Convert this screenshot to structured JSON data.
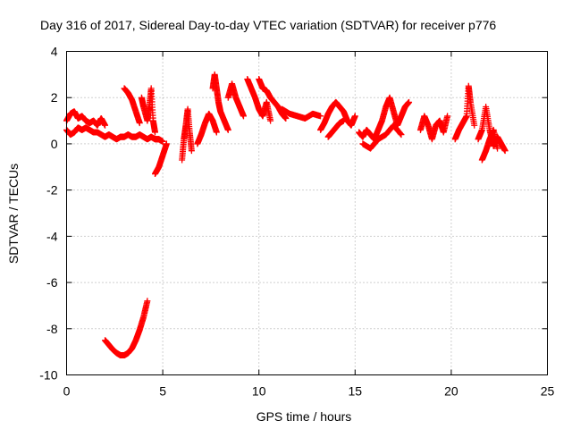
{
  "chart_data": {
    "type": "scatter",
    "title": "Day 316 of 2017, Sidereal Day-to-day VTEC variation (SDTVAR) for receiver p776",
    "xlabel": "GPS time / hours",
    "ylabel": "SDTVAR / TECUs",
    "xlim": [
      0,
      25
    ],
    "ylim": [
      -10,
      4
    ],
    "xticks": [
      "0",
      "5",
      "10",
      "15",
      "20",
      "25"
    ],
    "yticks": [
      "-10",
      "-8",
      "-6",
      "-4",
      "-2",
      "0",
      "2",
      "4"
    ],
    "grid": true,
    "marker": "plus",
    "color": "#ff0000",
    "series": [
      {
        "name": "SDTVAR",
        "segments": [
          [
            [
              0.0,
              1.0
            ],
            [
              0.2,
              1.3
            ],
            [
              0.4,
              1.4
            ],
            [
              0.6,
              1.1
            ],
            [
              0.8,
              1.2
            ],
            [
              1.0,
              1.0
            ],
            [
              1.2,
              0.9
            ],
            [
              1.4,
              1.0
            ],
            [
              1.6,
              0.8
            ],
            [
              1.8,
              1.1
            ],
            [
              2.0,
              0.8
            ]
          ],
          [
            [
              0.0,
              0.6
            ],
            [
              0.2,
              0.4
            ],
            [
              0.4,
              0.5
            ],
            [
              0.6,
              0.7
            ],
            [
              0.8,
              0.6
            ],
            [
              1.0,
              0.7
            ],
            [
              1.2,
              0.6
            ],
            [
              1.4,
              0.5
            ],
            [
              1.6,
              0.5
            ],
            [
              1.8,
              0.4
            ],
            [
              2.0,
              0.3
            ],
            [
              2.2,
              0.4
            ],
            [
              2.4,
              0.3
            ],
            [
              2.6,
              0.2
            ],
            [
              2.8,
              0.3
            ],
            [
              3.0,
              0.3
            ],
            [
              3.2,
              0.4
            ],
            [
              3.4,
              0.3
            ],
            [
              3.6,
              0.3
            ],
            [
              3.8,
              0.4
            ],
            [
              4.0,
              0.3
            ],
            [
              4.2,
              0.2
            ],
            [
              4.4,
              0.3
            ],
            [
              4.6,
              0.2
            ],
            [
              4.8,
              0.2
            ],
            [
              5.0,
              0.1
            ]
          ],
          [
            [
              2.0,
              -8.5
            ],
            [
              2.2,
              -8.7
            ],
            [
              2.4,
              -8.9
            ],
            [
              2.6,
              -9.05
            ],
            [
              2.8,
              -9.15
            ],
            [
              3.0,
              -9.15
            ],
            [
              3.2,
              -9.05
            ],
            [
              3.4,
              -8.85
            ],
            [
              3.6,
              -8.5
            ],
            [
              3.8,
              -8.05
            ],
            [
              4.0,
              -7.5
            ],
            [
              4.2,
              -6.8
            ]
          ],
          [
            [
              3.0,
              2.4
            ],
            [
              3.2,
              2.2
            ],
            [
              3.4,
              1.9
            ],
            [
              3.6,
              1.4
            ],
            [
              3.8,
              0.9
            ]
          ],
          [
            [
              3.9,
              2.0
            ],
            [
              4.0,
              1.6
            ],
            [
              4.2,
              1.0
            ],
            [
              4.3,
              1.6
            ],
            [
              4.4,
              2.4
            ],
            [
              4.5,
              1.0
            ],
            [
              4.6,
              0.5
            ]
          ],
          [
            [
              4.6,
              -1.3
            ],
            [
              4.8,
              -1.0
            ],
            [
              5.0,
              -0.5
            ],
            [
              5.2,
              0.0
            ]
          ],
          [
            [
              6.0,
              -0.7
            ],
            [
              6.1,
              0.2
            ],
            [
              6.2,
              0.8
            ],
            [
              6.3,
              1.5
            ],
            [
              6.4,
              0.5
            ],
            [
              6.5,
              -0.3
            ]
          ],
          [
            [
              6.8,
              0.0
            ],
            [
              7.0,
              0.4
            ],
            [
              7.2,
              0.9
            ],
            [
              7.4,
              1.3
            ],
            [
              7.6,
              1.0
            ],
            [
              7.8,
              0.5
            ]
          ],
          [
            [
              7.6,
              2.4
            ],
            [
              7.7,
              3.0
            ],
            [
              7.8,
              2.4
            ],
            [
              7.9,
              1.8
            ],
            [
              8.0,
              1.4
            ],
            [
              8.2,
              1.0
            ],
            [
              8.4,
              0.6
            ]
          ],
          [
            [
              8.4,
              2.0
            ],
            [
              8.6,
              2.6
            ],
            [
              8.8,
              2.0
            ],
            [
              9.0,
              1.6
            ],
            [
              9.2,
              1.2
            ]
          ],
          [
            [
              9.4,
              2.8
            ],
            [
              9.6,
              2.4
            ],
            [
              9.8,
              2.0
            ],
            [
              10.0,
              1.5
            ],
            [
              10.2,
              1.2
            ],
            [
              10.4,
              1.8
            ],
            [
              10.6,
              1.0
            ]
          ],
          [
            [
              10.0,
              2.8
            ],
            [
              10.2,
              2.4
            ],
            [
              10.4,
              2.3
            ],
            [
              10.6,
              2.0
            ],
            [
              10.8,
              1.8
            ],
            [
              11.0,
              1.6
            ],
            [
              11.2,
              1.3
            ],
            [
              11.4,
              1.1
            ]
          ],
          [
            [
              11.2,
              1.5
            ],
            [
              11.6,
              1.3
            ],
            [
              12.0,
              1.2
            ],
            [
              12.4,
              1.1
            ],
            [
              12.8,
              1.3
            ],
            [
              13.2,
              1.2
            ]
          ],
          [
            [
              13.2,
              0.6
            ],
            [
              13.4,
              0.9
            ],
            [
              13.6,
              1.3
            ],
            [
              13.8,
              1.6
            ],
            [
              14.0,
              1.8
            ],
            [
              14.2,
              1.6
            ],
            [
              14.4,
              1.4
            ],
            [
              14.6,
              1.0
            ],
            [
              14.8,
              0.8
            ],
            [
              15.0,
              1.2
            ]
          ],
          [
            [
              13.6,
              0.3
            ],
            [
              13.8,
              0.5
            ],
            [
              14.0,
              0.7
            ],
            [
              14.2,
              0.9
            ],
            [
              14.4,
              1.0
            ]
          ],
          [
            [
              15.2,
              0.5
            ],
            [
              15.4,
              0.3
            ],
            [
              15.6,
              0.6
            ],
            [
              15.8,
              0.4
            ],
            [
              16.0,
              0.2
            ],
            [
              16.2,
              0.6
            ],
            [
              16.4,
              1.0
            ],
            [
              16.6,
              1.6
            ],
            [
              16.8,
              2.0
            ],
            [
              17.0,
              1.4
            ],
            [
              17.2,
              0.8
            ],
            [
              17.4,
              1.2
            ],
            [
              17.6,
              1.6
            ],
            [
              17.8,
              1.8
            ]
          ],
          [
            [
              15.4,
              0.0
            ],
            [
              15.8,
              -0.2
            ],
            [
              16.2,
              0.2
            ],
            [
              16.6,
              0.4
            ],
            [
              17.0,
              0.8
            ],
            [
              17.4,
              0.4
            ]
          ],
          [
            [
              18.4,
              0.6
            ],
            [
              18.6,
              1.2
            ],
            [
              18.8,
              0.8
            ],
            [
              19.0,
              0.2
            ],
            [
              19.2,
              0.8
            ],
            [
              19.4,
              1.0
            ],
            [
              19.6,
              0.5
            ],
            [
              19.8,
              1.2
            ]
          ],
          [
            [
              20.2,
              0.2
            ],
            [
              20.4,
              0.6
            ],
            [
              20.6,
              0.9
            ],
            [
              20.8,
              1.2
            ],
            [
              20.9,
              2.5
            ],
            [
              21.0,
              1.8
            ],
            [
              21.2,
              0.8
            ]
          ],
          [
            [
              21.4,
              0.2
            ],
            [
              21.6,
              0.6
            ],
            [
              21.8,
              1.6
            ],
            [
              22.0,
              0.6
            ],
            [
              22.2,
              -0.1
            ],
            [
              22.4,
              0.3
            ],
            [
              22.6,
              0.0
            ],
            [
              22.8,
              -0.3
            ]
          ],
          [
            [
              21.6,
              -0.7
            ],
            [
              21.8,
              -0.3
            ],
            [
              22.0,
              0.2
            ],
            [
              22.2,
              0.6
            ],
            [
              22.4,
              -0.2
            ]
          ]
        ]
      }
    ]
  }
}
